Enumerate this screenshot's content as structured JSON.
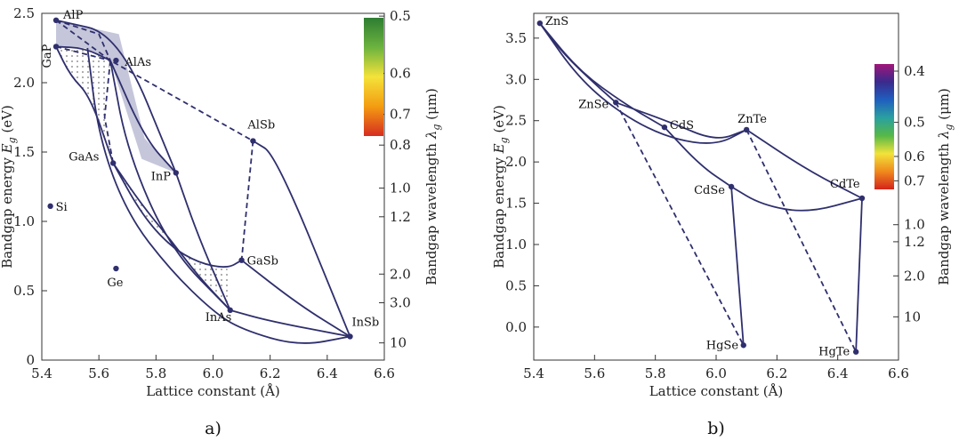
{
  "chart_data": [
    {
      "type": "scatter",
      "panel_label": "a)",
      "xlabel": "Lattice constant (Å)",
      "ylabel": "Bandgap energy E_g (eV)",
      "ylabel_parts": {
        "main": "Bandgap energy ",
        "symbol": "E",
        "sub": "g",
        "unit": " (eV)"
      },
      "y2label": "Bandgap wavelength λ_g (μm)",
      "y2label_parts": {
        "main": "Bandgap wavelength ",
        "symbol": "λ",
        "sub": "g",
        "unit": " (μm)"
      },
      "xlim": [
        5.4,
        6.6
      ],
      "ylim": [
        0,
        2.5
      ],
      "xticks": [
        5.4,
        5.6,
        5.8,
        6.0,
        6.2,
        6.4,
        6.6
      ],
      "xtick_labels": [
        "5.4",
        "5.6",
        "5.8",
        "6.0",
        "6.2",
        "6.4",
        "6.6"
      ],
      "yticks": [
        0,
        0.5,
        1.0,
        1.5,
        2.0,
        2.5
      ],
      "ytick_labels": [
        "0",
        "0.5",
        "1.0",
        "1.5",
        "2.0",
        "2.5"
      ],
      "y2ticks": [
        0.5,
        0.6,
        0.7,
        0.8,
        1.0,
        1.2,
        2.0,
        3.0,
        10
      ],
      "y2tick_labels": [
        "0.5",
        "0.6",
        "0.7",
        "0.8",
        "1.0",
        "1.2",
        "2.0",
        "3.0",
        "10"
      ],
      "colorbar": {
        "from_um": 0.5,
        "to_um": 0.72,
        "colors": [
          "#2e7d32",
          "#6cb33f",
          "#f4e23a",
          "#f39c12",
          "#d62d20"
        ]
      },
      "points": [
        {
          "name": "AlP",
          "x": 5.45,
          "y": 2.45
        },
        {
          "name": "GaP",
          "x": 5.45,
          "y": 2.26
        },
        {
          "name": "AlAs",
          "x": 5.66,
          "y": 2.16
        },
        {
          "name": "AlSb",
          "x": 6.14,
          "y": 1.58
        },
        {
          "name": "GaAs",
          "x": 5.65,
          "y": 1.42
        },
        {
          "name": "InP",
          "x": 5.87,
          "y": 1.35
        },
        {
          "name": "Si",
          "x": 5.43,
          "y": 1.11
        },
        {
          "name": "GaSb",
          "x": 6.1,
          "y": 0.72
        },
        {
          "name": "Ge",
          "x": 5.66,
          "y": 0.66
        },
        {
          "name": "InAs",
          "x": 6.06,
          "y": 0.36
        },
        {
          "name": "InSb",
          "x": 6.48,
          "y": 0.17
        }
      ],
      "lines": [
        {
          "style": "solid",
          "points": [
            [
              5.45,
              2.45
            ],
            [
              5.67,
              2.35
            ],
            [
              5.87,
              1.35
            ]
          ]
        },
        {
          "style": "solid",
          "points": [
            [
              5.45,
              2.26
            ],
            [
              5.55,
              2.25
            ],
            [
              5.64,
              2.16
            ]
          ]
        },
        {
          "style": "solid",
          "points": [
            [
              5.45,
              2.26
            ],
            [
              5.5,
              2.05
            ],
            [
              5.57,
              1.9
            ],
            [
              5.65,
              1.42
            ]
          ]
        },
        {
          "style": "solid",
          "points": [
            [
              5.65,
              1.42
            ],
            [
              5.75,
              1.05
            ],
            [
              5.85,
              0.82
            ],
            [
              5.95,
              0.7
            ],
            [
              6.05,
              0.66
            ],
            [
              6.1,
              0.72
            ]
          ]
        },
        {
          "style": "solid",
          "points": [
            [
              5.65,
              1.42
            ],
            [
              5.75,
              1.12
            ],
            [
              5.85,
              0.87
            ],
            [
              5.95,
              0.6
            ],
            [
              6.06,
              0.36
            ]
          ]
        },
        {
          "style": "solid",
          "points": [
            [
              5.64,
              2.16
            ],
            [
              5.76,
              1.6
            ],
            [
              5.87,
              1.35
            ]
          ]
        },
        {
          "style": "solid",
          "points": [
            [
              5.87,
              1.35
            ],
            [
              5.95,
              0.88
            ],
            [
              6.06,
              0.36
            ]
          ]
        },
        {
          "style": "solid",
          "points": [
            [
              5.64,
              2.16
            ],
            [
              5.7,
              1.5
            ],
            [
              5.85,
              0.8
            ],
            [
              6.06,
              0.36
            ]
          ]
        },
        {
          "style": "solid",
          "points": [
            [
              5.56,
              2.25
            ],
            [
              5.6,
              1.6
            ],
            [
              5.7,
              1.05
            ],
            [
              5.85,
              0.65
            ],
            [
              6.0,
              0.35
            ],
            [
              6.1,
              0.22
            ],
            [
              6.3,
              0.1
            ],
            [
              6.48,
              0.17
            ]
          ]
        },
        {
          "style": "solid",
          "points": [
            [
              6.06,
              0.36
            ],
            [
              6.2,
              0.28
            ],
            [
              6.48,
              0.17
            ]
          ]
        },
        {
          "style": "solid",
          "points": [
            [
              6.1,
              0.72
            ],
            [
              6.3,
              0.4
            ],
            [
              6.48,
              0.17
            ]
          ]
        },
        {
          "style": "solid",
          "points": [
            [
              6.14,
              1.58
            ],
            [
              6.22,
              1.48
            ],
            [
              6.48,
              0.17
            ]
          ]
        },
        {
          "style": "dashed",
          "points": [
            [
              5.45,
              2.45
            ],
            [
              5.64,
              2.16
            ],
            [
              6.14,
              1.58
            ],
            [
              6.1,
              0.72
            ]
          ]
        },
        {
          "style": "dashed",
          "points": [
            [
              5.45,
              2.45
            ],
            [
              5.6,
              2.35
            ],
            [
              5.64,
              2.16
            ]
          ]
        },
        {
          "style": "dashed",
          "points": [
            [
              5.64,
              2.16
            ],
            [
              5.62,
              1.75
            ],
            [
              5.65,
              1.42
            ]
          ]
        },
        {
          "style": "dashed",
          "points": [
            [
              5.45,
              2.26
            ],
            [
              5.64,
              2.16
            ]
          ]
        }
      ]
    },
    {
      "type": "scatter",
      "panel_label": "b)",
      "xlabel": "Lattice constant (Å)",
      "ylabel": "Bandgap energy E_g (eV)",
      "ylabel_parts": {
        "main": "Bandgap energy ",
        "symbol": "E",
        "sub": "g",
        "unit": " (eV)"
      },
      "y2label": "Bandgap wavelength λ_g (μm)",
      "y2label_parts": {
        "main": "Bandgap wavelength ",
        "symbol": "λ",
        "sub": "g",
        "unit": " (μm)"
      },
      "xlim": [
        5.4,
        6.6
      ],
      "ylim": [
        -0.4,
        3.8
      ],
      "xticks": [
        5.4,
        5.6,
        5.8,
        6.0,
        6.2,
        6.4,
        6.6
      ],
      "xtick_labels": [
        "5.4",
        "5.6",
        "5.8",
        "6.0",
        "6.2",
        "6.4",
        "6.6"
      ],
      "yticks": [
        0,
        0.5,
        1.0,
        1.5,
        2.0,
        2.5,
        3.0,
        3.5
      ],
      "ytick_labels": [
        "0.0",
        "0.5",
        "1.0",
        "1.5",
        "2.0",
        "2.5",
        "3.0",
        "3.5"
      ],
      "y2ticks": [
        0.4,
        0.5,
        0.6,
        0.7,
        1.0,
        1.2,
        2.0,
        10
      ],
      "y2tick_labels": [
        "0.4",
        "0.5",
        "0.6",
        "0.7",
        "1.0",
        "1.2",
        "2.0",
        "10"
      ],
      "colorbar": {
        "from_um": 0.38,
        "to_um": 0.78,
        "colors": [
          "#a0157a",
          "#3a2a8c",
          "#1f5fbf",
          "#2aa0a0",
          "#56b848",
          "#f2e33a",
          "#f08a1c",
          "#d4241c"
        ]
      },
      "points": [
        {
          "name": "ZnS",
          "x": 5.42,
          "y": 3.68
        },
        {
          "name": "ZnSe",
          "x": 5.67,
          "y": 2.72
        },
        {
          "name": "CdS",
          "x": 5.83,
          "y": 2.42
        },
        {
          "name": "ZnTe",
          "x": 6.1,
          "y": 2.39
        },
        {
          "name": "CdSe",
          "x": 6.05,
          "y": 1.7
        },
        {
          "name": "CdTe",
          "x": 6.48,
          "y": 1.56
        },
        {
          "name": "HgSe",
          "x": 6.09,
          "y": -0.22
        },
        {
          "name": "HgTe",
          "x": 6.46,
          "y": -0.3
        }
      ],
      "lines": [
        {
          "style": "solid",
          "points": [
            [
              5.42,
              3.68
            ],
            [
              5.5,
              3.3
            ],
            [
              5.6,
              2.95
            ],
            [
              5.67,
              2.72
            ]
          ]
        },
        {
          "style": "solid",
          "points": [
            [
              5.42,
              3.68
            ],
            [
              5.55,
              3.1
            ],
            [
              5.7,
              2.7
            ],
            [
              5.83,
              2.42
            ]
          ]
        },
        {
          "style": "solid",
          "points": [
            [
              5.42,
              3.68
            ],
            [
              5.55,
              3.0
            ],
            [
              5.7,
              2.55
            ],
            [
              5.85,
              2.28
            ],
            [
              6.0,
              2.2
            ],
            [
              6.1,
              2.39
            ]
          ]
        },
        {
          "style": "solid",
          "points": [
            [
              5.67,
              2.72
            ],
            [
              5.85,
              2.48
            ],
            [
              6.0,
              2.25
            ],
            [
              6.1,
              2.39
            ]
          ]
        },
        {
          "style": "solid",
          "points": [
            [
              5.83,
              2.42
            ],
            [
              5.95,
              1.95
            ],
            [
              6.05,
              1.7
            ]
          ]
        },
        {
          "style": "solid",
          "points": [
            [
              6.1,
              2.39
            ],
            [
              6.3,
              1.9
            ],
            [
              6.48,
              1.56
            ]
          ]
        },
        {
          "style": "solid",
          "points": [
            [
              6.05,
              1.7
            ],
            [
              6.15,
              1.48
            ],
            [
              6.3,
              1.38
            ],
            [
              6.48,
              1.56
            ]
          ]
        },
        {
          "style": "solid",
          "points": [
            [
              6.05,
              1.7
            ],
            [
              6.09,
              -0.22
            ]
          ]
        },
        {
          "style": "solid",
          "points": [
            [
              6.48,
              1.56
            ],
            [
              6.46,
              -0.3
            ]
          ]
        },
        {
          "style": "dashed",
          "points": [
            [
              5.67,
              2.72
            ],
            [
              6.09,
              -0.22
            ]
          ]
        },
        {
          "style": "dashed",
          "points": [
            [
              6.1,
              2.39
            ],
            [
              6.46,
              -0.3
            ]
          ]
        }
      ]
    }
  ]
}
